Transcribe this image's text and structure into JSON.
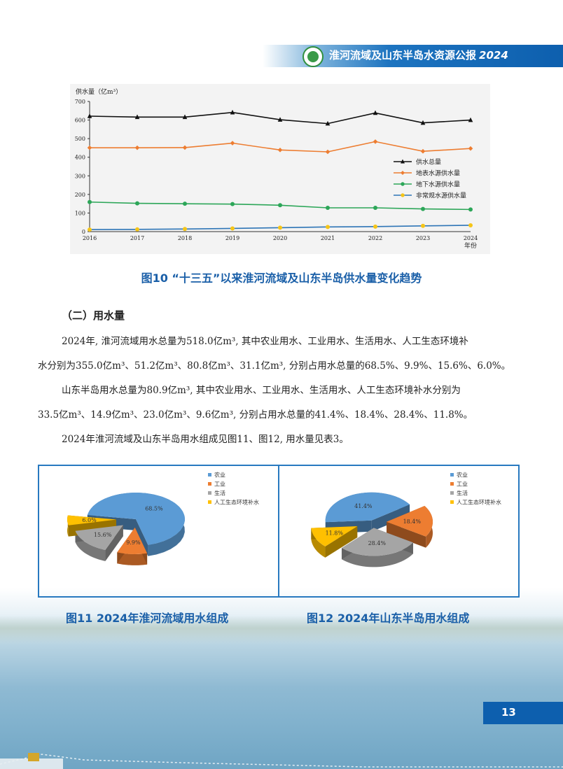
{
  "header": {
    "title": "淮河流域及山东半岛水资源公报",
    "year": "2024"
  },
  "chart_data": [
    {
      "type": "line",
      "title": "",
      "ylabel": "供水量（亿m³）",
      "xlabel": "年份",
      "ylim": [
        0,
        700
      ],
      "yticks": [
        "0",
        "100",
        "200",
        "300",
        "400",
        "500",
        "600",
        "700"
      ],
      "x": [
        "2016",
        "2017",
        "2018",
        "2019",
        "2020",
        "2021",
        "2022",
        "2023",
        "2024"
      ],
      "legend_position": "center-right",
      "grid": false,
      "series": [
        {
          "name": "供水总量",
          "color": "#111111",
          "marker": "triangle",
          "values": [
            621,
            616,
            616,
            641,
            602,
            581,
            638,
            585,
            600
          ]
        },
        {
          "name": "地表水源供水量",
          "color": "#ed7d31",
          "marker": "diamond",
          "values": [
            451,
            451,
            452,
            476,
            439,
            429,
            484,
            432,
            447
          ]
        },
        {
          "name": "地下水源供水量",
          "color": "#2ca658",
          "marker": "circle",
          "values": [
            159,
            152,
            150,
            148,
            142,
            128,
            128,
            122,
            119
          ]
        },
        {
          "name": "非常规水源供水量",
          "color": "#2e75b6",
          "marker": "circle",
          "marker_color": "#f5c518",
          "values": [
            11,
            12,
            14,
            17,
            21,
            25,
            27,
            31,
            34
          ]
        }
      ]
    },
    {
      "type": "pie",
      "title": "",
      "categories": [
        "农业",
        "工业",
        "生活",
        "人工生态环境补水"
      ],
      "values": [
        68.5,
        9.9,
        15.6,
        6.0
      ],
      "labels": [
        "68.5%",
        "9.9%",
        "15.6%",
        "6.0%"
      ],
      "colors": [
        "#5b9bd5",
        "#ed7d31",
        "#a5a5a5",
        "#ffc000"
      ],
      "legend_position": "top-right"
    },
    {
      "type": "pie",
      "title": "",
      "categories": [
        "农业",
        "工业",
        "生活",
        "人工生态环境补水"
      ],
      "values": [
        41.4,
        18.4,
        28.4,
        11.8
      ],
      "labels": [
        "41.4%",
        "18.4%",
        "28.4%",
        "11.8%"
      ],
      "colors": [
        "#5b9bd5",
        "#ed7d31",
        "#a5a5a5",
        "#ffc000"
      ],
      "legend_position": "top-right"
    }
  ],
  "figures": {
    "fig10": "图10  “十三五”以来淮河流域及山东半岛供水量变化趋势",
    "fig11": "图11  2024年淮河流域用水组成",
    "fig12": "图12  2024年山东半岛用水组成"
  },
  "body": {
    "section_heading": "（二）用水量",
    "p1_line1": "2024年, 淮河流域用水总量为518.0亿m³, 其中农业用水、工业用水、生活用水、人工生态环境补",
    "p1_line2": "水分别为355.0亿m³、51.2亿m³、80.8亿m³、31.1亿m³, 分别占用水总量的68.5%、9.9%、15.6%、6.0%。",
    "p2_line1": "山东半岛用水总量为80.9亿m³, 其中农业用水、工业用水、生活用水、人工生态环境补水分别为",
    "p2_line2": "33.5亿m³、14.9亿m³、23.0亿m³、9.6亿m³, 分别占用水总量的41.4%、18.4%、28.4%、11.8%。",
    "p3_line1": "2024年淮河流域及山东半岛用水组成见图11、图12, 用水量见表3。"
  },
  "page_number": "13"
}
